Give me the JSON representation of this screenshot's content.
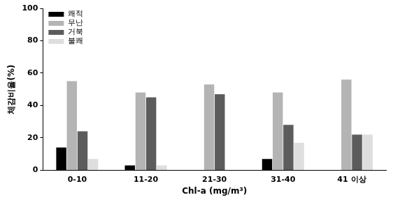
{
  "chart_data": {
    "type": "bar",
    "x_label": "Chl-a (mg/m³)",
    "y_label": "체감비율(%)",
    "categories": [
      "0-10",
      "11-20",
      "21-30",
      "31-40",
      "41 이상"
    ],
    "series": [
      {
        "name": "쾌적",
        "color": "#000000",
        "values": [
          14,
          3,
          0,
          7,
          0
        ]
      },
      {
        "name": "무난",
        "color": "#b4b4b4",
        "values": [
          55,
          48,
          53,
          48,
          56
        ]
      },
      {
        "name": "거북",
        "color": "#5c5c5c",
        "values": [
          24,
          45,
          47,
          28,
          22
        ]
      },
      {
        "name": "불쾌",
        "color": "#dedede",
        "values": [
          7,
          3,
          0,
          17,
          22
        ]
      }
    ],
    "ylim": [
      0,
      100
    ],
    "yticks": [
      0,
      20,
      40,
      60,
      80,
      100
    ],
    "grid": false,
    "legend": "upper left"
  }
}
